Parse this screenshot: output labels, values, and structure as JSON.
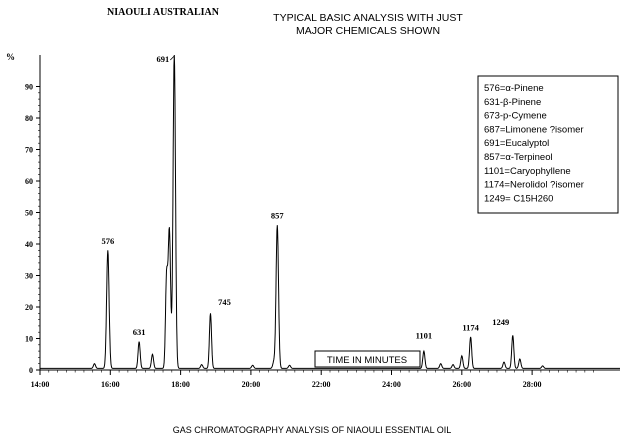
{
  "chart_data": {
    "type": "line",
    "sample_name": "NIAOULI AUSTRALIAN",
    "title_lines": [
      "TYPICAL BASIC ANALYSIS WITH JUST",
      "MAJOR CHEMICALS SHOWN"
    ],
    "caption": "GAS CHROMATOGRAPHY ANALYSIS OF NIAOULI ESSENTIAL OIL",
    "ylabel": "%",
    "xlabel": "TIME IN MINUTES",
    "xlim": [
      14,
      30.5
    ],
    "ylim": [
      0,
      100
    ],
    "x_ticks": [
      "14:00",
      "16:00",
      "18:00",
      "20:00",
      "22:00",
      "24:00",
      "26:00",
      "28:00"
    ],
    "x_tick_values": [
      14,
      16,
      18,
      20,
      22,
      24,
      26,
      28
    ],
    "y_ticks": [
      0,
      10,
      20,
      30,
      40,
      50,
      60,
      70,
      80,
      90
    ],
    "grid": false,
    "legend_position": "top-right",
    "legend": [
      "576=α-Pinene",
      "631-β-Pinene",
      "673-p-Cymene",
      "687=Limonene ?isomer",
      "691=Eucalyptol",
      "857=α-Terpineol",
      "1101=Caryophyllene",
      "1174=Nerolidol ?isomer",
      "1249= C15H260"
    ],
    "labeled_peaks": [
      {
        "label": "576",
        "x": 15.93,
        "y": 37.5
      },
      {
        "label": "631",
        "x": 16.82,
        "y": 8.5
      },
      {
        "label": "691",
        "x": 17.82,
        "y": 100
      },
      {
        "label": "745",
        "x": 18.85,
        "y": 17.5
      },
      {
        "label": "857",
        "x": 20.75,
        "y": 45.5
      },
      {
        "label": "1101",
        "x": 24.92,
        "y": 5.5
      },
      {
        "label": "1174",
        "x": 26.25,
        "y": 10
      },
      {
        "label": "1249",
        "x": 27.45,
        "y": 10.5
      }
    ],
    "minor_peaks": [
      {
        "x": 15.55,
        "y": 1.5
      },
      {
        "x": 17.2,
        "y": 4.5
      },
      {
        "x": 17.68,
        "y": 44
      },
      {
        "x": 17.6,
        "y": 28
      },
      {
        "x": 18.6,
        "y": 1.2
      },
      {
        "x": 20.05,
        "y": 1.0
      },
      {
        "x": 20.65,
        "y": 2.0
      },
      {
        "x": 21.1,
        "y": 1.0
      },
      {
        "x": 25.4,
        "y": 1.5
      },
      {
        "x": 25.75,
        "y": 1.2
      },
      {
        "x": 26.0,
        "y": 4.0
      },
      {
        "x": 27.2,
        "y": 2.0
      },
      {
        "x": 27.65,
        "y": 3.0
      },
      {
        "x": 28.3,
        "y": 0.8
      }
    ]
  }
}
